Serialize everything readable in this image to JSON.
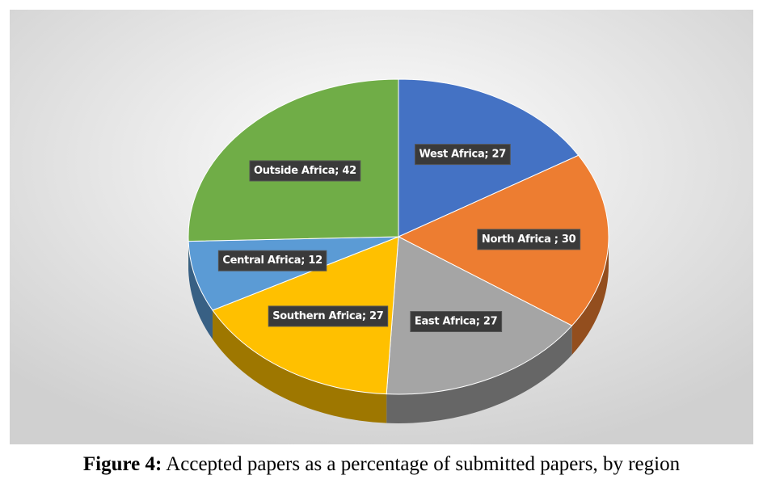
{
  "chart_data": {
    "type": "pie",
    "values": [
      27,
      30,
      27,
      27,
      12,
      42
    ],
    "value_labels": [
      "West Africa; 27",
      "North Africa  ; 30",
      "East Africa; 27",
      "Southern Africa; 27",
      "Central Africa; 12",
      "Outside Africa; 42"
    ],
    "colors": [
      "#4472c4",
      "#ed7d31",
      "#a5a5a5",
      "#ffc000",
      "#5b9bd5",
      "#70ad47"
    ],
    "caption": {
      "label": "Figure 4:",
      "text": "Accepted papers as a percentage of submitted papers, by region"
    }
  }
}
